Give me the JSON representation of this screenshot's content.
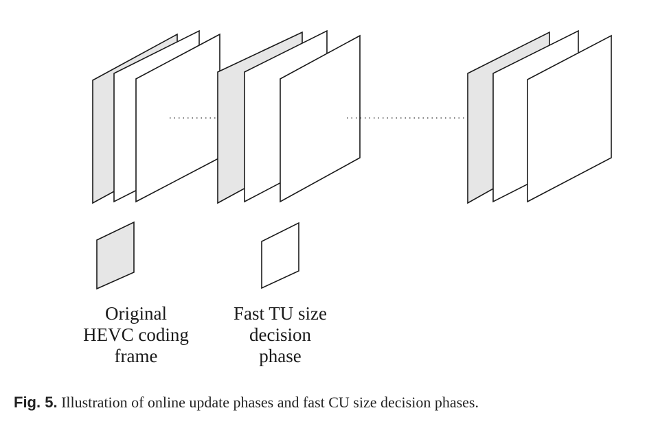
{
  "labels": {
    "original": [
      "Original",
      "HEVC coding",
      "frame"
    ],
    "fast": [
      "Fast TU size",
      "decision",
      "phase"
    ]
  },
  "caption": {
    "number": "Fig. 5.",
    "text": "Illustration of online update phases and fast CU size decision phases."
  },
  "colors": {
    "original_frame_fill": "#e6e6e6",
    "fast_frame_fill": "#ffffff",
    "stroke": "#1a1a1a"
  }
}
